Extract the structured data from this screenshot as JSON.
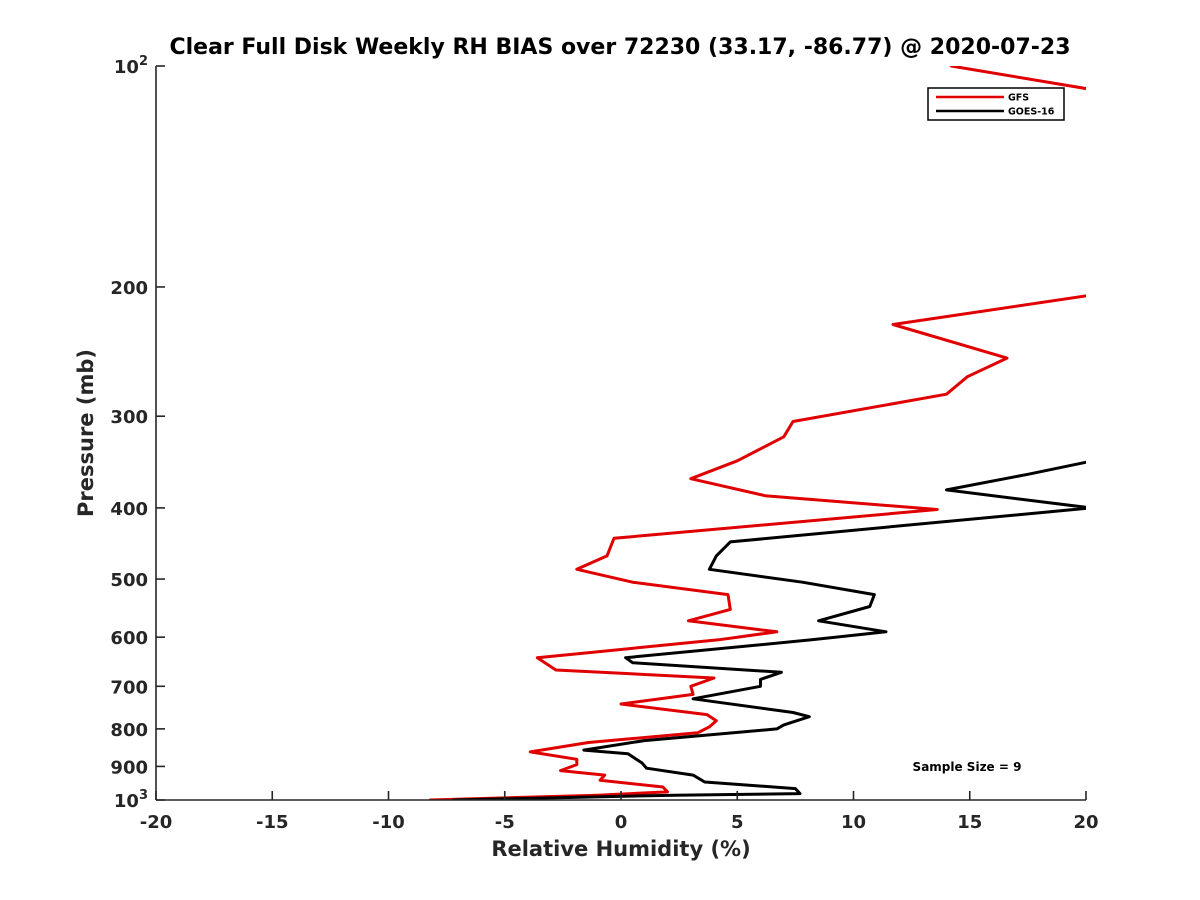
{
  "chart_data": {
    "type": "line",
    "title": "Clear Full Disk Weekly RH BIAS over 72230 (33.17, -86.77) @ 2020-07-23",
    "xlabel": "Relative Humidity (%)",
    "ylabel": "Pressure (mb)",
    "xlim": [
      -20,
      20
    ],
    "ylim": [
      100,
      1000
    ],
    "yscale": "log",
    "y_reversed": true,
    "grid": false,
    "legend_position": "top-right",
    "xticks": [
      -20,
      -15,
      -10,
      -5,
      0,
      5,
      10,
      15,
      20
    ],
    "xtick_labels": [
      "-20",
      "-15",
      "-10",
      "-5",
      "0",
      "5",
      "10",
      "15",
      "20"
    ],
    "yticks": [
      {
        "value": 100,
        "base": "10",
        "exp": "2"
      },
      {
        "value": 200,
        "label": "200"
      },
      {
        "value": 300,
        "label": "300"
      },
      {
        "value": 400,
        "label": "400"
      },
      {
        "value": 500,
        "label": "500"
      },
      {
        "value": 600,
        "label": "600"
      },
      {
        "value": 700,
        "label": "700"
      },
      {
        "value": 800,
        "label": "800"
      },
      {
        "value": 900,
        "label": "900"
      },
      {
        "value": 1000,
        "base": "10",
        "exp": "3"
      }
    ],
    "annotation": "Sample Size = 9",
    "series": [
      {
        "name": "GFS",
        "color": "#e00000",
        "points": [
          {
            "x": 14.2,
            "y": 100
          },
          {
            "x": 20.5,
            "y": 108
          },
          {
            "x": 20.3,
            "y": 205
          },
          {
            "x": 11.7,
            "y": 225
          },
          {
            "x": 16.6,
            "y": 250
          },
          {
            "x": 14.9,
            "y": 265
          },
          {
            "x": 14.0,
            "y": 280
          },
          {
            "x": 7.4,
            "y": 305
          },
          {
            "x": 7.0,
            "y": 320
          },
          {
            "x": 5.0,
            "y": 345
          },
          {
            "x": 3.0,
            "y": 365
          },
          {
            "x": 6.2,
            "y": 385
          },
          {
            "x": 13.6,
            "y": 402
          },
          {
            "x": -0.3,
            "y": 440
          },
          {
            "x": -0.6,
            "y": 465
          },
          {
            "x": -1.9,
            "y": 485
          },
          {
            "x": 0.5,
            "y": 505
          },
          {
            "x": 4.6,
            "y": 525
          },
          {
            "x": 4.7,
            "y": 550
          },
          {
            "x": 2.9,
            "y": 570
          },
          {
            "x": 6.7,
            "y": 590
          },
          {
            "x": 4.2,
            "y": 605
          },
          {
            "x": -3.6,
            "y": 640
          },
          {
            "x": -2.8,
            "y": 665
          },
          {
            "x": 4.0,
            "y": 682
          },
          {
            "x": 3.0,
            "y": 700
          },
          {
            "x": 3.1,
            "y": 718
          },
          {
            "x": 0.0,
            "y": 740
          },
          {
            "x": 3.7,
            "y": 765
          },
          {
            "x": 4.1,
            "y": 780
          },
          {
            "x": 3.8,
            "y": 795
          },
          {
            "x": 3.3,
            "y": 810
          },
          {
            "x": -1.4,
            "y": 835
          },
          {
            "x": -3.9,
            "y": 860
          },
          {
            "x": -1.9,
            "y": 880
          },
          {
            "x": -1.9,
            "y": 895
          },
          {
            "x": -2.6,
            "y": 912
          },
          {
            "x": -0.7,
            "y": 925
          },
          {
            "x": -0.9,
            "y": 940
          },
          {
            "x": 1.8,
            "y": 960
          },
          {
            "x": 2.0,
            "y": 975
          },
          {
            "x": -1.0,
            "y": 985
          },
          {
            "x": -8.2,
            "y": 1000
          }
        ]
      },
      {
        "name": "GOES-16",
        "color": "#000000",
        "points": [
          {
            "x": 20.3,
            "y": 345
          },
          {
            "x": 17.5,
            "y": 360
          },
          {
            "x": 14.0,
            "y": 378
          },
          {
            "x": 20.2,
            "y": 400
          },
          {
            "x": 4.7,
            "y": 445
          },
          {
            "x": 4.1,
            "y": 465
          },
          {
            "x": 3.8,
            "y": 485
          },
          {
            "x": 7.8,
            "y": 505
          },
          {
            "x": 10.9,
            "y": 525
          },
          {
            "x": 10.7,
            "y": 545
          },
          {
            "x": 8.5,
            "y": 570
          },
          {
            "x": 11.4,
            "y": 590
          },
          {
            "x": 8.2,
            "y": 605
          },
          {
            "x": 0.2,
            "y": 640
          },
          {
            "x": 0.5,
            "y": 650
          },
          {
            "x": 6.9,
            "y": 670
          },
          {
            "x": 6.0,
            "y": 685
          },
          {
            "x": 6.0,
            "y": 700
          },
          {
            "x": 3.1,
            "y": 728
          },
          {
            "x": 7.4,
            "y": 760
          },
          {
            "x": 8.1,
            "y": 770
          },
          {
            "x": 7.0,
            "y": 790
          },
          {
            "x": 6.7,
            "y": 800
          },
          {
            "x": 1.0,
            "y": 830
          },
          {
            "x": -1.6,
            "y": 855
          },
          {
            "x": 0.3,
            "y": 865
          },
          {
            "x": 0.9,
            "y": 890
          },
          {
            "x": 1.1,
            "y": 905
          },
          {
            "x": 3.1,
            "y": 925
          },
          {
            "x": 3.6,
            "y": 945
          },
          {
            "x": 7.5,
            "y": 965
          },
          {
            "x": 7.7,
            "y": 980
          },
          {
            "x": 2.3,
            "y": 985
          },
          {
            "x": -7.2,
            "y": 1000
          }
        ]
      }
    ]
  }
}
